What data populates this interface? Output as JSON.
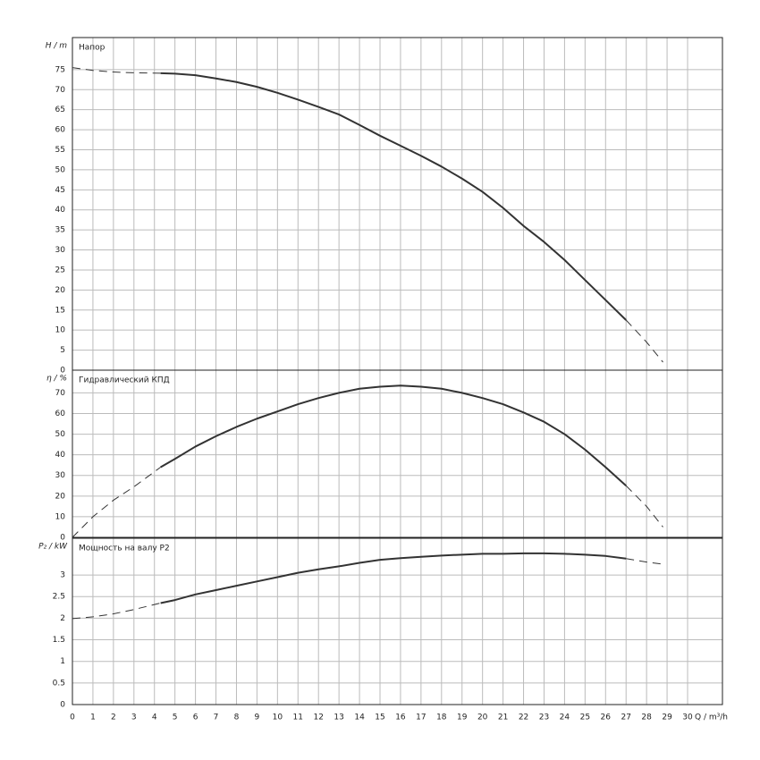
{
  "chart_data": [
    {
      "type": "line",
      "title": "Напор",
      "y_label": "H / m",
      "x": [
        0,
        1,
        2,
        3,
        4.3,
        5,
        6,
        7,
        8,
        9,
        10,
        11,
        12,
        13,
        14,
        15,
        16,
        17,
        18,
        19,
        20,
        21,
        22,
        23,
        24,
        25,
        26,
        27,
        28,
        28.8
      ],
      "series": [
        {
          "style": "dashed",
          "color": "#333333",
          "values": [
            75.5,
            74.8,
            74.4,
            74.2,
            74.1,
            null,
            null,
            null,
            null,
            null,
            null,
            null,
            null,
            null,
            null,
            null,
            null,
            null,
            null,
            null,
            null,
            null,
            null,
            null,
            null,
            null,
            null,
            12.5,
            7,
            2
          ]
        },
        {
          "style": "solid",
          "color": "#333333",
          "values": [
            null,
            null,
            null,
            null,
            74.1,
            74,
            73.6,
            72.8,
            71.9,
            70.7,
            69.2,
            67.5,
            65.7,
            63.8,
            61.2,
            58.5,
            56,
            53.5,
            50.8,
            47.8,
            44.5,
            40.5,
            36,
            32,
            27.5,
            22.5,
            17.5,
            12.5,
            null,
            null
          ]
        }
      ],
      "xlim": [
        0,
        31.7
      ],
      "xticks": [
        0,
        1,
        2,
        3,
        4,
        5,
        6,
        7,
        8,
        9,
        10,
        11,
        12,
        13,
        14,
        15,
        16,
        17,
        18,
        19,
        20,
        21,
        22,
        23,
        24,
        25,
        26,
        27,
        28,
        29,
        30
      ],
      "ylim": [
        0,
        83
      ],
      "yticks": [
        0,
        5,
        10,
        15,
        20,
        25,
        30,
        35,
        40,
        45,
        50,
        55,
        60,
        65,
        70,
        75
      ],
      "grid": true
    },
    {
      "type": "line",
      "title": "Гидравлический КПД",
      "y_label": "η / %",
      "x": [
        0,
        1,
        2,
        3,
        4.3,
        5,
        6,
        7,
        8,
        9,
        10,
        11,
        12,
        13,
        14,
        15,
        16,
        17,
        18,
        19,
        20,
        21,
        22,
        23,
        24,
        25,
        26,
        27,
        28,
        28.8
      ],
      "series": [
        {
          "style": "dashed",
          "color": "#333333",
          "values": [
            0,
            10,
            18,
            24.5,
            34,
            null,
            null,
            null,
            null,
            null,
            null,
            null,
            null,
            null,
            null,
            null,
            null,
            null,
            null,
            null,
            null,
            null,
            null,
            null,
            null,
            null,
            null,
            25,
            15,
            5
          ]
        },
        {
          "style": "solid",
          "color": "#333333",
          "values": [
            null,
            null,
            null,
            null,
            34,
            38,
            44,
            49,
            53.5,
            57.5,
            61,
            64.5,
            67.5,
            70,
            72,
            73,
            73.5,
            73,
            72,
            70,
            67.5,
            64.5,
            60.5,
            56,
            50,
            42.5,
            34,
            25,
            null,
            null
          ]
        }
      ],
      "xlim": [
        0,
        31.7
      ],
      "xticks": [
        0,
        1,
        2,
        3,
        4,
        5,
        6,
        7,
        8,
        9,
        10,
        11,
        12,
        13,
        14,
        15,
        16,
        17,
        18,
        19,
        20,
        21,
        22,
        23,
        24,
        25,
        26,
        27,
        28,
        29,
        30
      ],
      "ylim": [
        0,
        81
      ],
      "yticks": [
        0,
        10,
        20,
        30,
        40,
        50,
        60,
        70
      ],
      "grid": true
    },
    {
      "type": "line",
      "title": "Мощность на валу P2",
      "y_label": "P₂ / kW",
      "x_label": "Q / m³/h",
      "x": [
        0,
        1,
        2,
        3,
        4.3,
        5,
        6,
        7,
        8,
        9,
        10,
        11,
        12,
        13,
        14,
        15,
        16,
        17,
        18,
        19,
        20,
        21,
        22,
        23,
        24,
        25,
        26,
        27,
        28,
        28.8
      ],
      "series": [
        {
          "style": "dashed",
          "color": "#333333",
          "values": [
            1.99,
            2.03,
            2.1,
            2.2,
            2.35,
            null,
            null,
            null,
            null,
            null,
            null,
            null,
            null,
            null,
            null,
            null,
            null,
            null,
            null,
            null,
            null,
            null,
            null,
            null,
            null,
            null,
            null,
            3.38,
            3.3,
            3.25
          ]
        },
        {
          "style": "solid",
          "color": "#333333",
          "values": [
            null,
            null,
            null,
            null,
            2.35,
            2.42,
            2.55,
            2.65,
            2.75,
            2.85,
            2.95,
            3.05,
            3.13,
            3.2,
            3.28,
            3.35,
            3.39,
            3.42,
            3.45,
            3.47,
            3.49,
            3.49,
            3.5,
            3.5,
            3.49,
            3.47,
            3.44,
            3.38,
            null,
            null
          ]
        }
      ],
      "xlim": [
        0,
        31.7
      ],
      "xticks": [
        0,
        1,
        2,
        3,
        4,
        5,
        6,
        7,
        8,
        9,
        10,
        11,
        12,
        13,
        14,
        15,
        16,
        17,
        18,
        19,
        20,
        21,
        22,
        23,
        24,
        25,
        26,
        27,
        28,
        29,
        30
      ],
      "ylim": [
        0,
        3.85
      ],
      "yticks": [
        0,
        0.5,
        1,
        1.5,
        2,
        2.5,
        3
      ],
      "grid": true
    }
  ]
}
